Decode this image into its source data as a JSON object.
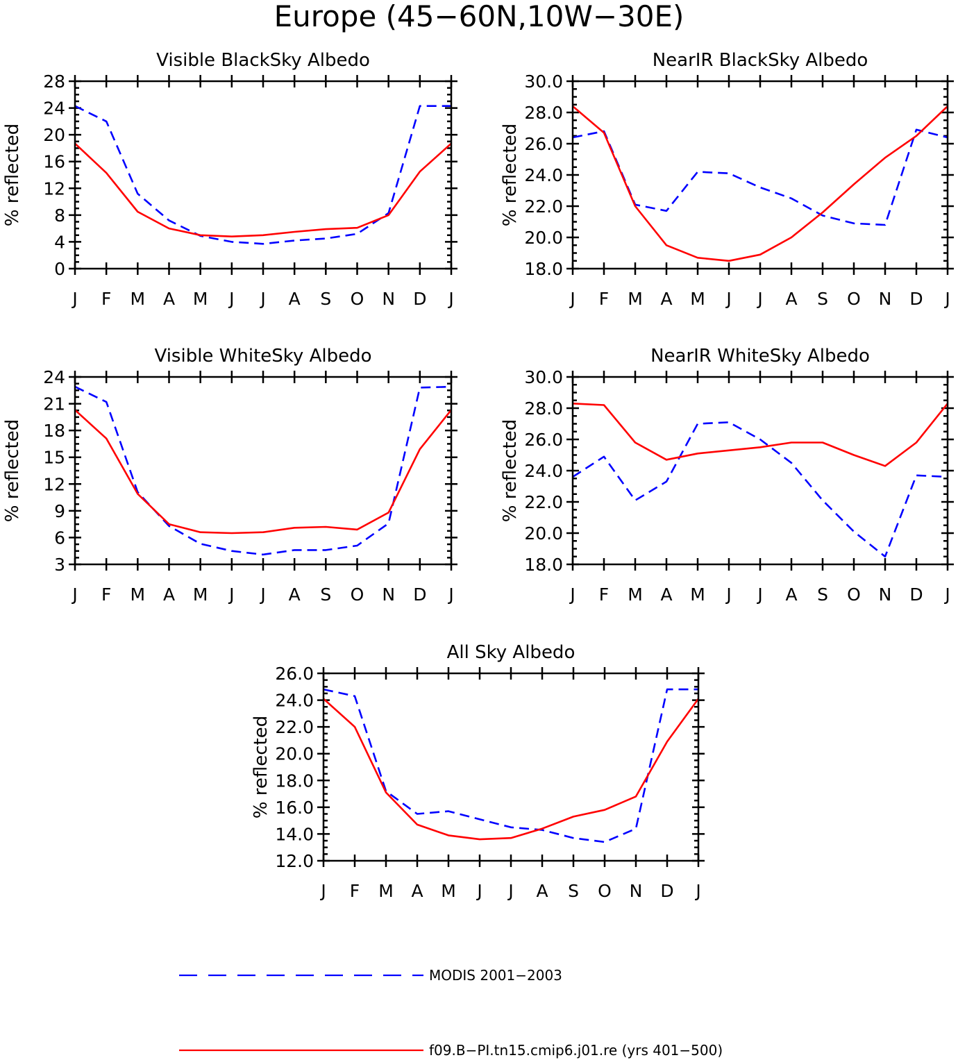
{
  "figure": {
    "title": "Europe (45−60N,10W−30E)",
    "colors": {
      "modis": "#0000ff",
      "model": "#ff0000"
    }
  },
  "legend": {
    "entries": [
      {
        "label": "MODIS 2001−2003",
        "style": "dashed",
        "color": "#0000ff"
      },
      {
        "label": "f09.B−PI.tn15.cmip6.j01.re (yrs 401−500)",
        "style": "solid",
        "color": "#ff0000"
      }
    ]
  },
  "chart_data": [
    {
      "type": "line",
      "title": "Visible BlackSky Albedo",
      "ylabel": "% reflected",
      "x": [
        "J",
        "F",
        "M",
        "A",
        "M",
        "J",
        "J",
        "A",
        "S",
        "O",
        "N",
        "D",
        "J"
      ],
      "ylim": [
        0,
        28
      ],
      "yticks": [
        "0",
        "4",
        "8",
        "12",
        "16",
        "20",
        "24",
        "28"
      ],
      "yminor": 1,
      "series": [
        {
          "name": "MODIS 2001−2003",
          "style": "dashed",
          "color": "#0000ff",
          "values": [
            24.3,
            22.0,
            11.2,
            7.2,
            4.9,
            4.0,
            3.7,
            4.2,
            4.5,
            5.2,
            8.3,
            24.3,
            24.3
          ]
        },
        {
          "name": "f09.B−PI.tn15.cmip6.j01.re (yrs 401−500)",
          "style": "solid",
          "color": "#ff0000",
          "values": [
            18.7,
            14.3,
            8.5,
            6.0,
            5.0,
            4.8,
            5.0,
            5.5,
            5.9,
            6.1,
            8.0,
            14.5,
            18.7
          ]
        }
      ]
    },
    {
      "type": "line",
      "title": "NearIR BlackSky Albedo",
      "ylabel": "% reflected",
      "x": [
        "J",
        "F",
        "M",
        "A",
        "M",
        "J",
        "J",
        "A",
        "S",
        "O",
        "N",
        "D",
        "J"
      ],
      "ylim": [
        18,
        30
      ],
      "yticks": [
        "18.0",
        "20.0",
        "22.0",
        "24.0",
        "26.0",
        "28.0",
        "30.0"
      ],
      "yminor": 1,
      "series": [
        {
          "name": "MODIS 2001−2003",
          "style": "dashed",
          "color": "#0000ff",
          "values": [
            26.4,
            26.8,
            22.1,
            21.7,
            24.2,
            24.1,
            23.2,
            22.5,
            21.4,
            20.9,
            20.8,
            26.9,
            26.4
          ]
        },
        {
          "name": "f09.B−PI.tn15.cmip6.j01.re (yrs 401−500)",
          "style": "solid",
          "color": "#ff0000",
          "values": [
            28.4,
            26.7,
            22.0,
            19.5,
            18.7,
            18.5,
            18.9,
            20.0,
            21.6,
            23.4,
            25.1,
            26.5,
            28.4
          ]
        }
      ]
    },
    {
      "type": "line",
      "title": "Visible WhiteSky Albedo",
      "ylabel": "% reflected",
      "x": [
        "J",
        "F",
        "M",
        "A",
        "M",
        "J",
        "J",
        "A",
        "S",
        "O",
        "N",
        "D",
        "J"
      ],
      "ylim": [
        3,
        24
      ],
      "yticks": [
        "3",
        "6",
        "9",
        "12",
        "15",
        "18",
        "21",
        "24"
      ],
      "yminor": 1,
      "series": [
        {
          "name": "MODIS 2001−2003",
          "style": "dashed",
          "color": "#0000ff",
          "values": [
            22.9,
            21.2,
            11.1,
            7.3,
            5.3,
            4.5,
            4.1,
            4.6,
            4.6,
            5.1,
            7.6,
            22.8,
            22.9
          ]
        },
        {
          "name": "f09.B−PI.tn15.cmip6.j01.re (yrs 401−500)",
          "style": "solid",
          "color": "#ff0000",
          "values": [
            20.3,
            17.1,
            10.9,
            7.5,
            6.6,
            6.5,
            6.6,
            7.1,
            7.2,
            6.9,
            8.8,
            15.9,
            20.3
          ]
        }
      ]
    },
    {
      "type": "line",
      "title": "NearIR WhiteSky Albedo",
      "ylabel": "% reflected",
      "x": [
        "J",
        "F",
        "M",
        "A",
        "M",
        "J",
        "J",
        "A",
        "S",
        "O",
        "N",
        "D",
        "J"
      ],
      "ylim": [
        18,
        30
      ],
      "yticks": [
        "18.0",
        "20.0",
        "22.0",
        "24.0",
        "26.0",
        "28.0",
        "30.0"
      ],
      "yminor": 1,
      "series": [
        {
          "name": "MODIS 2001−2003",
          "style": "dashed",
          "color": "#0000ff",
          "values": [
            23.6,
            24.9,
            22.1,
            23.3,
            27.0,
            27.1,
            26.0,
            24.5,
            22.1,
            20.1,
            18.5,
            23.7,
            23.6
          ]
        },
        {
          "name": "f09.B−PI.tn15.cmip6.j01.re (yrs 401−500)",
          "style": "solid",
          "color": "#ff0000",
          "values": [
            28.3,
            28.2,
            25.8,
            24.7,
            25.1,
            25.3,
            25.5,
            25.8,
            25.8,
            25.0,
            24.3,
            25.8,
            28.3
          ]
        }
      ]
    },
    {
      "type": "line",
      "title": "All Sky Albedo",
      "ylabel": "% reflected",
      "x": [
        "J",
        "F",
        "M",
        "A",
        "M",
        "J",
        "J",
        "A",
        "S",
        "O",
        "N",
        "D",
        "J"
      ],
      "ylim": [
        12,
        26
      ],
      "yticks": [
        "12.0",
        "14.0",
        "16.0",
        "18.0",
        "20.0",
        "22.0",
        "24.0",
        "26.0"
      ],
      "yminor": 1,
      "series": [
        {
          "name": "MODIS 2001−2003",
          "style": "dashed",
          "color": "#0000ff",
          "values": [
            24.8,
            24.3,
            17.2,
            15.5,
            15.7,
            15.1,
            14.5,
            14.3,
            13.7,
            13.4,
            14.4,
            24.8,
            24.8
          ]
        },
        {
          "name": "f09.B−PI.tn15.cmip6.j01.re (yrs 401−500)",
          "style": "solid",
          "color": "#ff0000",
          "values": [
            24.1,
            22.0,
            17.1,
            14.7,
            13.9,
            13.6,
            13.7,
            14.4,
            15.3,
            15.8,
            16.8,
            20.9,
            24.1
          ]
        }
      ]
    }
  ]
}
